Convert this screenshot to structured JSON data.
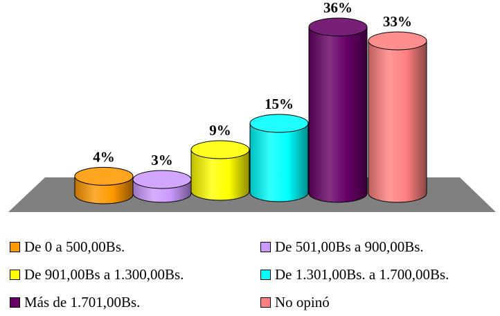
{
  "chart_data": {
    "type": "bar",
    "style": "3d-cylinder",
    "categories": [
      "De 0 a 500,00Bs.",
      "De 501,00Bs a 900,00Bs.",
      "De 901,00Bs a 1.300,00Bs.",
      "De 1.301,00Bs. a 1.700,00Bs.",
      "Más de 1.701,00Bs.",
      "No opinó"
    ],
    "values": [
      4,
      3,
      9,
      15,
      36,
      33
    ],
    "data_labels": [
      "4%",
      "3%",
      "9%",
      "15%",
      "36%",
      "33%"
    ],
    "colors": [
      "#FF9900",
      "#CC99FF",
      "#FFFF00",
      "#00FFFF",
      "#660066",
      "#FF8080"
    ],
    "floor_color": "#808080",
    "ylim": [
      0,
      36
    ],
    "grid": false,
    "legend": "bottom"
  }
}
